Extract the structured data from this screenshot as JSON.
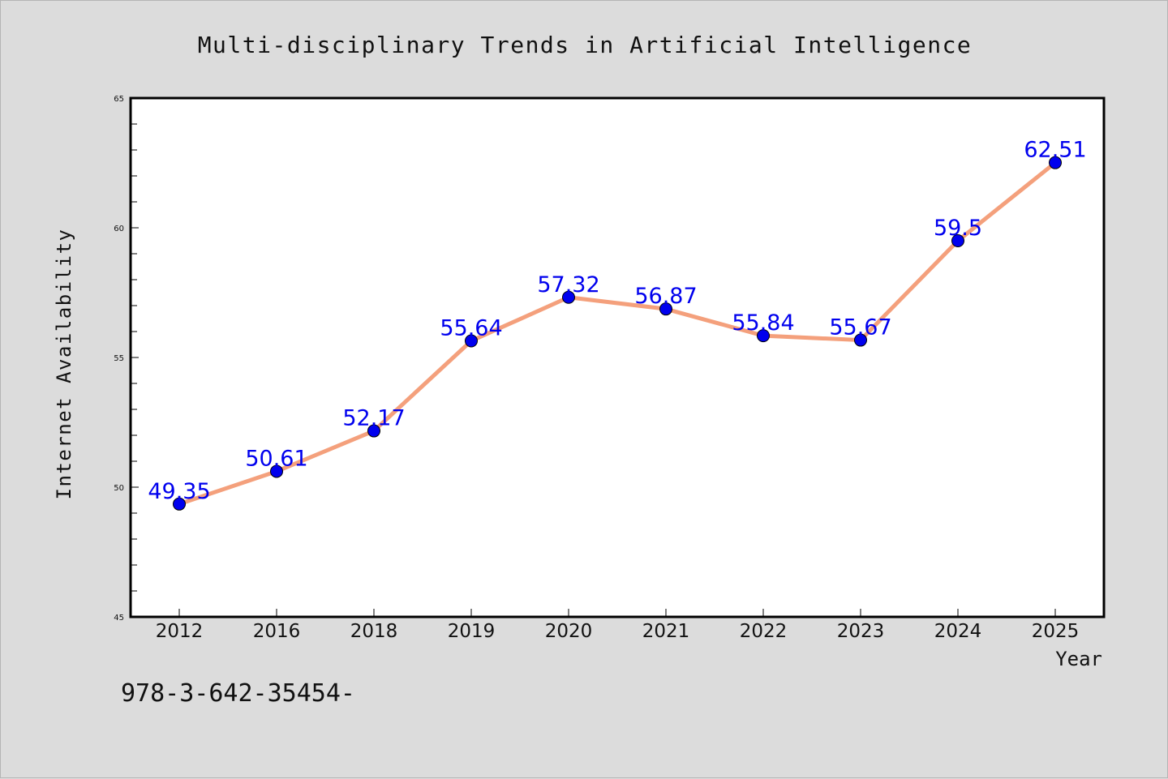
{
  "chart_data": {
    "type": "line",
    "title": "Multi-disciplinary Trends in Artificial Intelligence",
    "xlabel": "Year",
    "ylabel": "Internet Availability",
    "categories": [
      "2012",
      "2016",
      "2018",
      "2019",
      "2020",
      "2021",
      "2022",
      "2023",
      "2024",
      "2025"
    ],
    "series": [
      {
        "values": [
          49.35,
          50.61,
          52.17,
          55.64,
          57.32,
          56.87,
          55.84,
          55.67,
          59.5,
          62.51
        ],
        "labels": [
          "49.35",
          "50.61",
          "52.17",
          "55.64",
          "57.32",
          "56.87",
          "55.84",
          "55.67",
          "59.5",
          "62.51"
        ],
        "line_color": "#f4a07c",
        "marker_color": "#0000ee"
      }
    ],
    "ylim": [
      45,
      65
    ],
    "yticks": [
      "45",
      "50",
      "55",
      "60",
      "65"
    ],
    "grid": false,
    "label_color": "#0000ee"
  },
  "footer_text": "978-3-642-35454-"
}
